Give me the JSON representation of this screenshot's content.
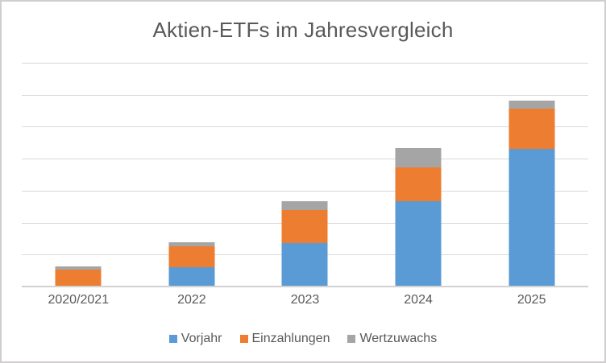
{
  "title": "Aktien-ETFs im Jahresvergleich",
  "colors": {
    "vorjahr": "#5B9BD5",
    "einzahlungen": "#ED7D31",
    "wertzuwachs": "#A5A5A5",
    "text": "#595959",
    "gridline": "#D9D9D9",
    "axis_line": "#D2D2D2",
    "frame_border": "#D0CECE",
    "background": "#FFFFFF"
  },
  "chart_data": {
    "type": "bar",
    "stacked": true,
    "title": "Aktien-ETFs im Jahresvergleich",
    "categories": [
      "2020/2021",
      "2022",
      "2023",
      "2024",
      "2025"
    ],
    "series": [
      {
        "name": "Vorjahr",
        "color": "#5B9BD5",
        "values": [
          0,
          0.6,
          1.36,
          2.67,
          4.31
        ]
      },
      {
        "name": "Einzahlungen",
        "color": "#ED7D31",
        "values": [
          0.53,
          0.65,
          1.03,
          1.06,
          1.26
        ]
      },
      {
        "name": "Wertzuwachs",
        "color": "#A5A5A5",
        "values": [
          0.1,
          0.13,
          0.28,
          0.6,
          0.25
        ]
      }
    ],
    "totals": [
      0.63,
      1.38,
      2.67,
      4.33,
      5.82
    ],
    "xlabel": "",
    "ylabel": "",
    "ylim": [
      0,
      7
    ],
    "y_tick_step": 1,
    "y_tick_labels_visible": false,
    "grid": true,
    "legend_position": "bottom"
  }
}
